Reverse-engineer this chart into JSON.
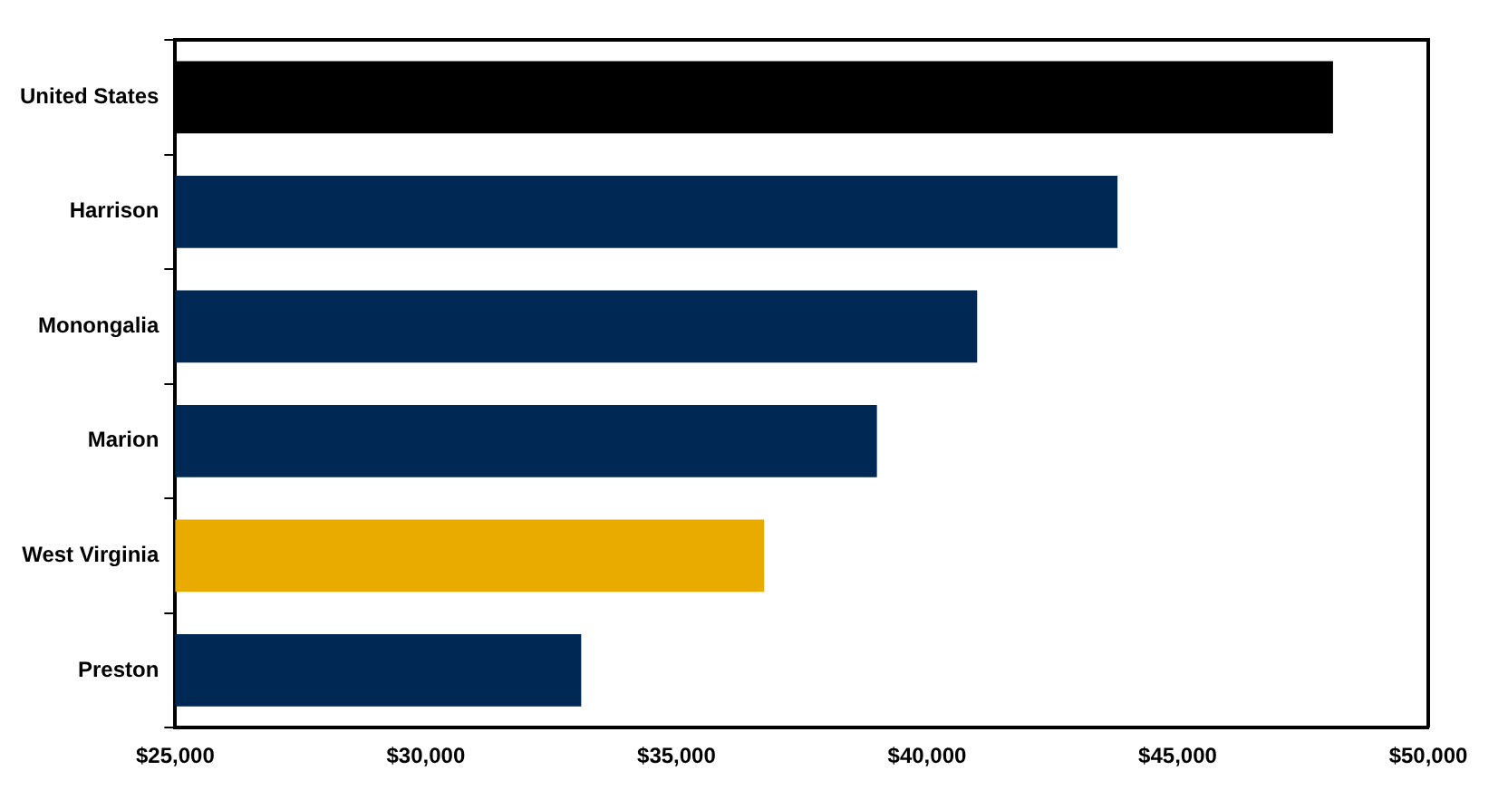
{
  "chart_data": {
    "type": "bar",
    "orientation": "horizontal",
    "categories": [
      "United States",
      "Harrison",
      "Monongalia",
      "Marion",
      "West Virginia",
      "Preston"
    ],
    "values": [
      48100,
      43800,
      41000,
      39000,
      36750,
      33100
    ],
    "colors": [
      "#000000",
      "#002855",
      "#002855",
      "#002855",
      "#eaab00",
      "#002855"
    ],
    "xlim": [
      25000,
      50000
    ],
    "xticks": [
      {
        "value": 25000,
        "label": "$25,000"
      },
      {
        "value": 30000,
        "label": "$30,000"
      },
      {
        "value": 35000,
        "label": "$35,000"
      },
      {
        "value": 40000,
        "label": "$40,000"
      },
      {
        "value": 45000,
        "label": "$45,000"
      },
      {
        "value": 50000,
        "label": "$50,000"
      }
    ],
    "grid": false,
    "legend": false
  }
}
